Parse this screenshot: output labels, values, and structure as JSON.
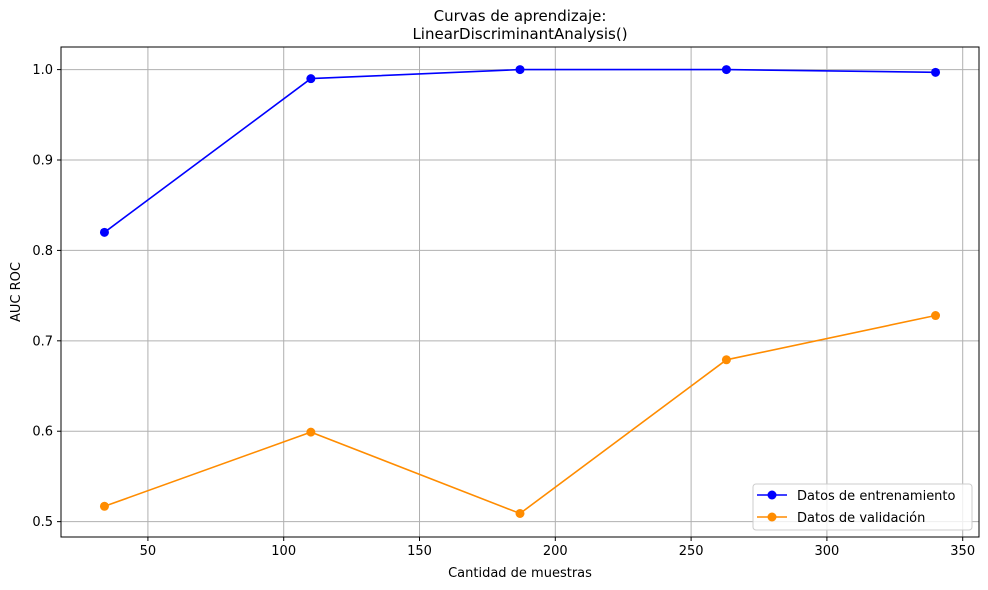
{
  "chart_data": {
    "type": "line",
    "title": "Curvas de aprendizaje:",
    "subtitle": "LinearDiscriminantAnalysis()",
    "xlabel": "Cantidad de muestras",
    "ylabel": "AUC ROC",
    "xlim": [
      18,
      356
    ],
    "ylim": [
      0.483,
      1.025
    ],
    "xticks": [
      50,
      100,
      150,
      200,
      250,
      300,
      350
    ],
    "yticks": [
      0.5,
      0.6,
      0.7,
      0.8,
      0.9,
      1.0
    ],
    "xtick_labels": [
      "50",
      "100",
      "150",
      "200",
      "250",
      "300",
      "350"
    ],
    "ytick_labels": [
      "0.5",
      "0.6",
      "0.7",
      "0.8",
      "0.9",
      "1.0"
    ],
    "grid": true,
    "legend_position": "bottom-right",
    "x": [
      34,
      110,
      187,
      263,
      340
    ],
    "series": [
      {
        "name": "Datos de entrenamiento",
        "color": "#0000ff",
        "values": [
          0.82,
          0.99,
          1.0,
          1.0,
          0.997
        ]
      },
      {
        "name": "Datos de validación",
        "color": "#ff8c00",
        "values": [
          0.517,
          0.599,
          0.509,
          0.679,
          0.728
        ]
      }
    ]
  }
}
